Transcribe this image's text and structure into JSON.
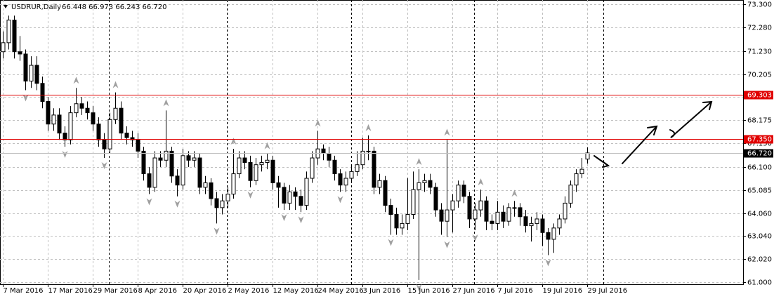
{
  "chart_data": {
    "type": "candlestick",
    "title": "USDRUR,Daily",
    "ohlc_label": "66.448 66.973 66.243 66.720",
    "categories": [
      "7 Mar 2016",
      null,
      null,
      null,
      null,
      null,
      null,
      null,
      "17 Mar 2016",
      null,
      null,
      null,
      null,
      null,
      null,
      null,
      "29 Mar 2016",
      null,
      null,
      null,
      null,
      null,
      null,
      null,
      "8 Apr 2016",
      null,
      null,
      null,
      null,
      null,
      null,
      null,
      "20 Apr 2016",
      null,
      null,
      null,
      null,
      null,
      null,
      null,
      "2 May 2016",
      null,
      null,
      null,
      null,
      null,
      null,
      null,
      "12 May 2016",
      null,
      null,
      null,
      null,
      null,
      null,
      null,
      "24 May 2016",
      null,
      null,
      null,
      null,
      null,
      null,
      null,
      "3 Jun 2016",
      null,
      null,
      null,
      null,
      null,
      null,
      null,
      "15 Jun 2016",
      null,
      null,
      null,
      null,
      null,
      null,
      null,
      "27 Jun 2016",
      null,
      null,
      null,
      null,
      null,
      null,
      null,
      "7 Jul 2016",
      null,
      null,
      null,
      null,
      null,
      null,
      null,
      "19 Jul 2016",
      null,
      null,
      null,
      null,
      null,
      null,
      null,
      "29 Jul 2016"
    ],
    "open": [
      71.2,
      71.6,
      72.6,
      71.2,
      71.1,
      69.9,
      70.6,
      69.8,
      69.0,
      68.0,
      68.4,
      67.6,
      67.3,
      68.5,
      68.9,
      68.7,
      68.5,
      68.0,
      67.3,
      66.9,
      68.2,
      68.7,
      67.6,
      67.4,
      67.3,
      66.8,
      65.8,
      65.2,
      66.5,
      66.4,
      66.8,
      65.7,
      65.3,
      66.6,
      66.4,
      66.5,
      65.2,
      65.4,
      64.7,
      64.3,
      64.6,
      64.9,
      65.8,
      66.5,
      66.3,
      65.5,
      66.2,
      66.3,
      66.4,
      65.4,
      65.2,
      64.5,
      65.0,
      64.8,
      64.4,
      65.6,
      66.5,
      66.9,
      66.7,
      66.4,
      65.8,
      65.3,
      65.6,
      65.9,
      66.2,
      66.8,
      66.8,
      65.2,
      65.5,
      64.4,
      64.0,
      63.4,
      63.6,
      64.0,
      65.1,
      65.4,
      65.5,
      65.2,
      64.2,
      63.7,
      64.2,
      64.6,
      65.3,
      64.8,
      63.8,
      64.2,
      64.6,
      63.7,
      63.6,
      64.1,
      63.7,
      64.3,
      64.3,
      63.9,
      63.5,
      63.6,
      63.8,
      63.2,
      62.9,
      63.4,
      63.8,
      64.5,
      65.3,
      65.8,
      66.448
    ],
    "high": [
      72.1,
      72.8,
      72.8,
      71.9,
      71.3,
      71.0,
      71.0,
      70.1,
      69.2,
      68.7,
      68.7,
      67.9,
      68.8,
      69.6,
      69.2,
      69.0,
      68.8,
      68.3,
      67.6,
      68.5,
      69.4,
      69.0,
      67.9,
      67.7,
      67.6,
      67.0,
      66.1,
      66.8,
      66.8,
      68.6,
      67.0,
      66.0,
      66.9,
      66.8,
      66.8,
      66.7,
      65.7,
      65.6,
      65.0,
      64.9,
      65.2,
      66.9,
      66.8,
      66.8,
      66.6,
      66.5,
      66.6,
      66.7,
      66.6,
      65.7,
      65.4,
      65.3,
      65.2,
      65.1,
      65.9,
      66.8,
      67.7,
      67.1,
      67.0,
      66.6,
      66.0,
      65.9,
      66.2,
      66.8,
      67.4,
      67.5,
      67.0,
      65.8,
      65.7,
      64.7,
      64.3,
      64.0,
      65.6,
      65.9,
      66.0,
      65.8,
      65.8,
      65.4,
      64.5,
      67.3,
      64.9,
      65.5,
      65.5,
      65.0,
      64.5,
      65.1,
      64.8,
      64.0,
      64.6,
      64.4,
      64.5,
      64.6,
      64.5,
      64.2,
      63.9,
      64.1,
      64.0,
      63.4,
      63.6,
      64.0,
      64.8,
      65.5,
      66.0,
      66.5,
      66.973
    ],
    "low": [
      70.9,
      71.3,
      70.9,
      70.8,
      69.5,
      69.6,
      69.5,
      68.7,
      67.7,
      67.7,
      67.3,
      67.0,
      67.1,
      68.3,
      68.4,
      68.2,
      67.7,
      67.0,
      66.5,
      66.7,
      68.0,
      67.3,
      67.1,
      67.0,
      66.5,
      65.5,
      64.9,
      65.0,
      66.1,
      66.1,
      65.4,
      64.8,
      65.1,
      66.1,
      66.1,
      64.9,
      64.9,
      64.4,
      63.6,
      64.0,
      64.3,
      64.7,
      65.6,
      66.0,
      65.2,
      65.3,
      65.9,
      66.0,
      65.1,
      64.3,
      64.2,
      64.2,
      64.2,
      64.1,
      64.2,
      65.4,
      66.2,
      66.4,
      66.1,
      65.5,
      65.0,
      65.0,
      65.4,
      65.7,
      66.0,
      66.4,
      64.9,
      64.9,
      64.1,
      63.1,
      63.1,
      63.1,
      63.3,
      63.8,
      61.1,
      65.0,
      64.9,
      63.9,
      63.1,
      63.0,
      63.2,
      64.3,
      64.5,
      63.4,
      63.3,
      63.9,
      63.3,
      63.3,
      63.3,
      63.4,
      63.5,
      63.9,
      63.5,
      63.2,
      62.8,
      63.3,
      62.6,
      62.2,
      62.3,
      63.1,
      63.6,
      64.3,
      65.0,
      65.6,
      66.243
    ],
    "close": [
      71.6,
      72.6,
      71.2,
      71.1,
      69.9,
      70.6,
      69.8,
      69.0,
      68.0,
      68.4,
      67.6,
      67.3,
      68.5,
      68.9,
      68.7,
      68.5,
      68.0,
      67.3,
      66.9,
      68.2,
      68.7,
      67.6,
      67.4,
      67.3,
      66.8,
      65.8,
      65.2,
      66.5,
      66.4,
      66.8,
      65.7,
      65.3,
      66.6,
      66.4,
      66.5,
      65.2,
      65.4,
      64.7,
      64.3,
      64.6,
      64.9,
      65.8,
      66.5,
      66.3,
      65.5,
      66.2,
      66.3,
      66.4,
      65.4,
      65.2,
      64.5,
      65.0,
      64.8,
      64.4,
      65.6,
      66.5,
      66.9,
      66.7,
      66.4,
      65.8,
      65.3,
      65.6,
      65.9,
      66.2,
      66.8,
      66.8,
      65.2,
      65.5,
      64.4,
      64.0,
      63.4,
      63.6,
      64.0,
      65.1,
      65.4,
      65.5,
      65.2,
      64.2,
      63.7,
      64.2,
      64.6,
      65.3,
      64.8,
      63.8,
      64.2,
      64.6,
      63.7,
      63.6,
      64.1,
      63.7,
      64.3,
      64.3,
      63.9,
      63.5,
      63.6,
      63.8,
      63.2,
      62.9,
      63.4,
      63.8,
      64.5,
      65.3,
      65.8,
      66.0,
      66.72
    ],
    "ylim": [
      60.91,
      73.49
    ],
    "yticks": [
      {
        "value": 61.0,
        "label": "61.000"
      },
      {
        "value": 62.02,
        "label": "62.020"
      },
      {
        "value": 63.04,
        "label": "63.040"
      },
      {
        "value": 64.06,
        "label": "64.060"
      },
      {
        "value": 65.085,
        "label": "65.085"
      },
      {
        "value": 66.1,
        "label": "66.100"
      },
      {
        "value": 67.15,
        "label": "67.150"
      },
      {
        "value": 68.175,
        "label": "68.175"
      },
      {
        "value": 69.19,
        "label": "69.190"
      },
      {
        "value": 70.205,
        "label": "70.205"
      },
      {
        "value": 71.23,
        "label": "71.230"
      },
      {
        "value": 72.28,
        "label": "72.280"
      },
      {
        "value": 73.3,
        "label": "73.300"
      }
    ],
    "grid": true,
    "up_color": "#ffffff",
    "down_color": "#000000",
    "level_color": "#e00000",
    "levels": [
      69.303,
      {
        "value": 67.35,
        "label": "67.350"
      }
    ],
    "current_price": {
      "value": 66.72,
      "label": "66.720"
    }
  }
}
